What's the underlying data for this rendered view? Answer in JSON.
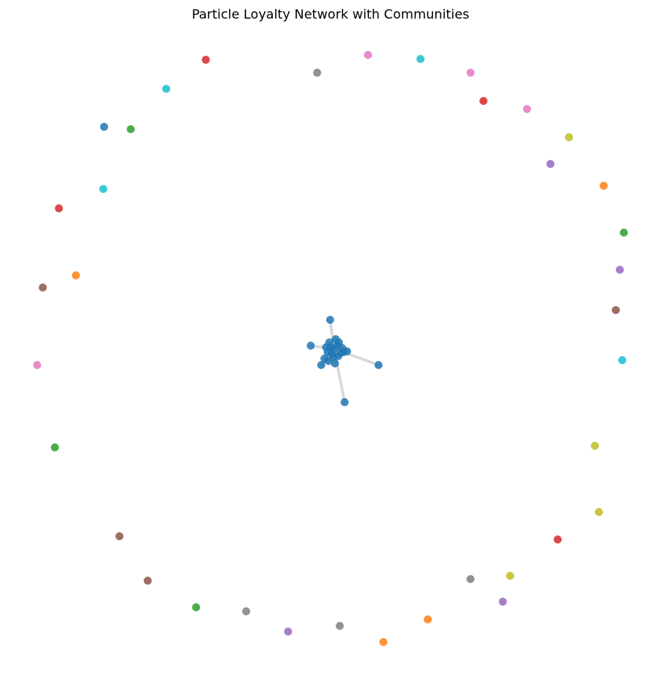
{
  "title": "Particle Loyalty Network with Communities",
  "chart_data": {
    "type": "network",
    "title": "Particle Loyalty Network with Communities",
    "community_colors": {
      "blue": "#1f77b4",
      "orange": "#ff7f0e",
      "green": "#2ca02c",
      "red": "#d62728",
      "purple": "#9467bd",
      "brown": "#8c564b",
      "pink": "#e377c2",
      "gray": "#7f7f7f",
      "olive": "#bcbd22",
      "cyan": "#17becf"
    },
    "edge_color": "#cccccc",
    "central_cluster": {
      "community": "blue",
      "core_nodes": 14,
      "outlier_nodes": 9
    },
    "isolated_nodes": [
      {
        "id": 1,
        "community": "red"
      },
      {
        "id": 2,
        "community": "gray"
      },
      {
        "id": 3,
        "community": "pink"
      },
      {
        "id": 4,
        "community": "cyan"
      },
      {
        "id": 5,
        "community": "pink"
      },
      {
        "id": 6,
        "community": "red"
      },
      {
        "id": 7,
        "community": "pink"
      },
      {
        "id": 8,
        "community": "olive"
      },
      {
        "id": 9,
        "community": "purple"
      },
      {
        "id": 10,
        "community": "orange"
      },
      {
        "id": 11,
        "community": "green"
      },
      {
        "id": 12,
        "community": "purple"
      },
      {
        "id": 13,
        "community": "brown"
      },
      {
        "id": 14,
        "community": "cyan"
      },
      {
        "id": 15,
        "community": "olive"
      },
      {
        "id": 16,
        "community": "olive"
      },
      {
        "id": 17,
        "community": "red"
      },
      {
        "id": 18,
        "community": "olive"
      },
      {
        "id": 19,
        "community": "purple"
      },
      {
        "id": 20,
        "community": "gray"
      },
      {
        "id": 21,
        "community": "orange"
      },
      {
        "id": 22,
        "community": "orange"
      },
      {
        "id": 23,
        "community": "gray"
      },
      {
        "id": 24,
        "community": "purple"
      },
      {
        "id": 25,
        "community": "gray"
      },
      {
        "id": 26,
        "community": "green"
      },
      {
        "id": 27,
        "community": "brown"
      },
      {
        "id": 28,
        "community": "brown"
      },
      {
        "id": 29,
        "community": "green"
      },
      {
        "id": 30,
        "community": "pink"
      },
      {
        "id": 31,
        "community": "brown"
      },
      {
        "id": 32,
        "community": "orange"
      },
      {
        "id": 33,
        "community": "red"
      },
      {
        "id": 34,
        "community": "cyan"
      },
      {
        "id": 35,
        "community": "blue"
      },
      {
        "id": 36,
        "community": "green"
      },
      {
        "id": 37,
        "community": "cyan"
      }
    ]
  }
}
